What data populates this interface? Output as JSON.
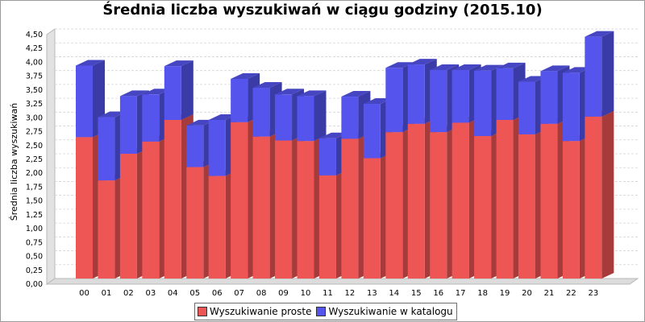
{
  "chart_data": {
    "type": "bar",
    "stacked": true,
    "three_d": true,
    "title": "Średnia liczba wyszukiwań w ciągu godziny (2015.10)",
    "ylabel": "Średnia liczba wyszukiwań",
    "xlabel": "",
    "ylim": [
      0,
      4.5
    ],
    "ytick_step": 0.25,
    "yticks": [
      "0,00",
      "0,25",
      "0,50",
      "0,75",
      "1,00",
      "1,25",
      "1,50",
      "1,75",
      "2,00",
      "2,25",
      "2,50",
      "2,75",
      "3,00",
      "3,25",
      "3,50",
      "3,75",
      "4,00",
      "4,25",
      "4,50"
    ],
    "grid": true,
    "legend_position": "bottom",
    "categories": [
      "00",
      "01",
      "02",
      "03",
      "04",
      "05",
      "06",
      "07",
      "08",
      "09",
      "10",
      "11",
      "12",
      "13",
      "14",
      "15",
      "16",
      "17",
      "18",
      "19",
      "20",
      "21",
      "22",
      "23"
    ],
    "series": [
      {
        "name": "Wyszukiwanie proste",
        "color": "#ee5555",
        "values": [
          2.55,
          1.77,
          2.25,
          2.47,
          2.86,
          2.01,
          1.85,
          2.82,
          2.56,
          2.49,
          2.48,
          1.86,
          2.52,
          2.17,
          2.64,
          2.79,
          2.64,
          2.81,
          2.57,
          2.86,
          2.6,
          2.79,
          2.48,
          2.92
        ]
      },
      {
        "name": "Wyszukiwanie w katalogu",
        "color": "#5555ee",
        "values": [
          1.29,
          1.14,
          1.04,
          0.85,
          0.97,
          0.75,
          1.01,
          0.78,
          0.88,
          0.83,
          0.81,
          0.67,
          0.76,
          0.98,
          1.16,
          1.07,
          1.12,
          0.95,
          1.18,
          0.93,
          0.95,
          0.95,
          1.23,
          1.44
        ]
      }
    ]
  }
}
